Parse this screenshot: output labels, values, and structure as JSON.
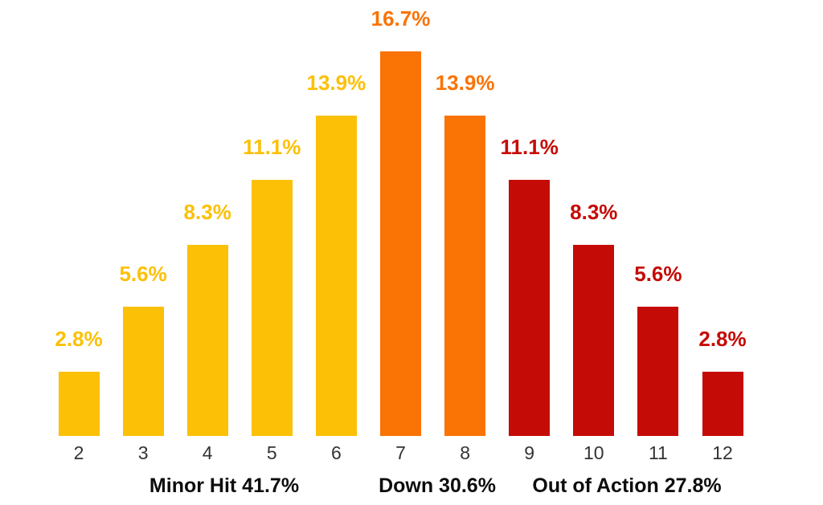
{
  "chart_data": {
    "type": "bar",
    "title": "",
    "categories": [
      "2",
      "3",
      "4",
      "5",
      "6",
      "7",
      "8",
      "9",
      "10",
      "11",
      "12"
    ],
    "values": [
      2.8,
      5.6,
      8.3,
      11.1,
      13.9,
      16.7,
      13.9,
      11.1,
      8.3,
      5.6,
      2.8
    ],
    "value_labels": [
      "2.8%",
      "5.6%",
      "8.3%",
      "11.1%",
      "13.9%",
      "16.7%",
      "13.9%",
      "11.1%",
      "8.3%",
      "5.6%",
      "2.8%"
    ],
    "color_groups": [
      "gold",
      "gold",
      "gold",
      "gold",
      "gold",
      "orange",
      "orange",
      "red",
      "red",
      "red",
      "red"
    ],
    "palette": {
      "gold": "#FCC006",
      "orange": "#FA7305",
      "red": "#C50B06"
    },
    "groups": [
      {
        "label": "Minor Hit 41.7%",
        "color_group": "gold",
        "total": "41.7%",
        "categories": [
          "2",
          "3",
          "4",
          "5",
          "6"
        ]
      },
      {
        "label": "Down 30.6%",
        "color_group": "orange",
        "total": "30.6%",
        "categories": [
          "7",
          "8"
        ]
      },
      {
        "label": "Out of Action 27.8%",
        "color_group": "red",
        "total": "27.8%",
        "categories": [
          "9",
          "10",
          "11",
          "12"
        ]
      }
    ],
    "xlabel": "",
    "ylabel": "",
    "ylim": [
      0,
      18
    ],
    "grid": false,
    "legend": "none",
    "axis_lines": false,
    "background_color": "#ffffff",
    "tick_label_color": "#333333",
    "group_label_color": "#0d0d0d"
  }
}
